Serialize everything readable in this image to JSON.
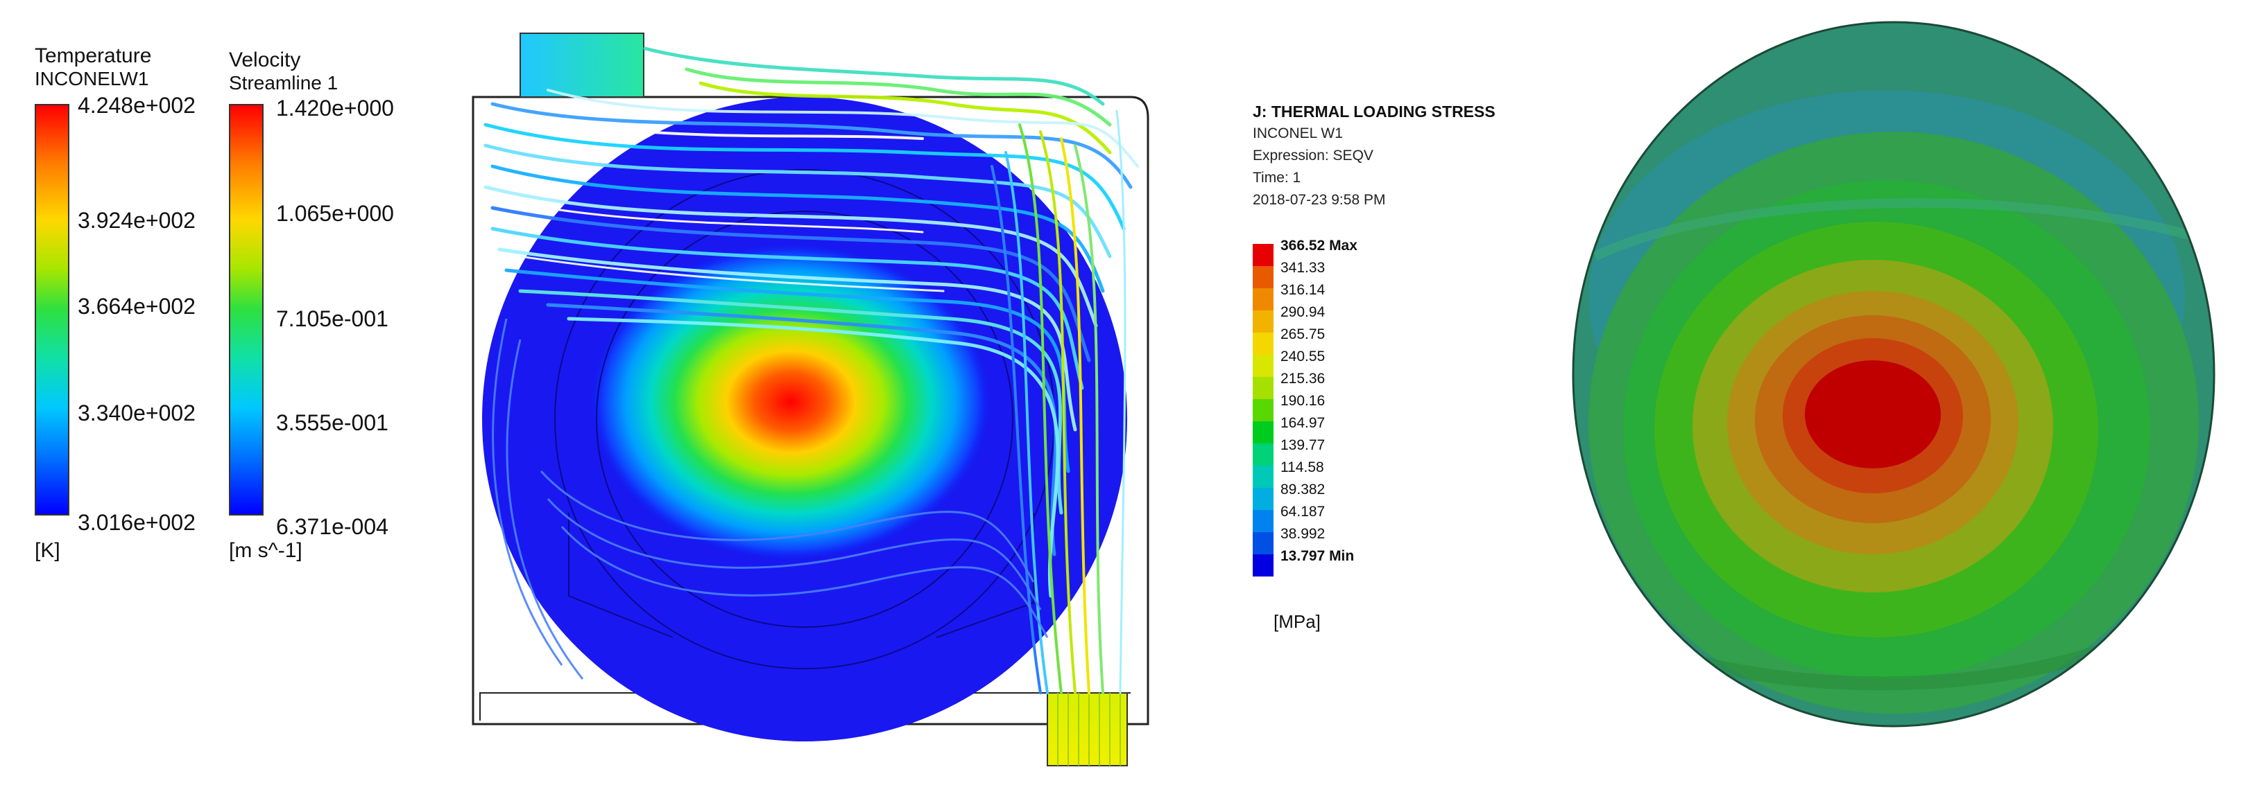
{
  "temperature_legend": {
    "title": "Temperature",
    "subtitle": "INCONELW1",
    "ticks": [
      "4.248e+002",
      "3.924e+002",
      "3.664e+002",
      "3.340e+002",
      "3.016e+002"
    ],
    "unit": "[K]"
  },
  "velocity_legend": {
    "title": "Velocity",
    "subtitle": "Streamline 1",
    "ticks": [
      "1.420e+000",
      "1.065e+000",
      "7.105e-001",
      "3.555e-001",
      "6.371e-004"
    ],
    "unit": "[m s^-1]"
  },
  "stress_legend": {
    "title": "J: THERMAL LOADING STRESS",
    "material": "INCONEL W1",
    "expression": "Expression: SEQV",
    "time": "Time: 1",
    "date": "2018-07-23 9:58 PM",
    "levels": [
      "366.52 Max",
      "341.33",
      "316.14",
      "290.94",
      "265.75",
      "240.55",
      "215.36",
      "190.16",
      "164.97",
      "139.77",
      "114.58",
      "89.382",
      "64.187",
      "38.992",
      "13.797 Min"
    ],
    "colors": [
      "#e60000",
      "#e85a00",
      "#ef8a00",
      "#f2b200",
      "#f4d700",
      "#d8e600",
      "#a6e000",
      "#58d800",
      "#00cc1e",
      "#00d27a",
      "#00c9b8",
      "#00aee0",
      "#0083ee",
      "#0050e6",
      "#0000e0"
    ],
    "unit": "[MPa]"
  },
  "colors": {
    "red": "#ff0000",
    "blue": "#0000ff",
    "green_stress": "#2e9e3a"
  }
}
